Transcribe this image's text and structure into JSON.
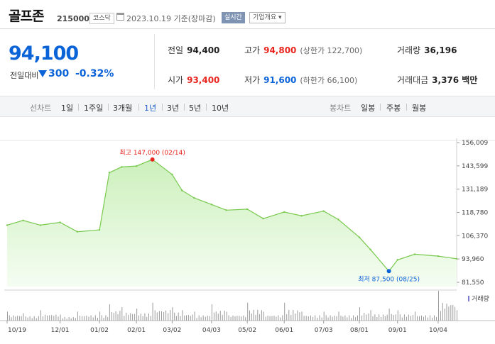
{
  "header": {
    "stock_name": "골프존",
    "stock_code": "215000",
    "market_badge": "코스닥",
    "date": "2023.10.19 기준(장마감)",
    "realtime_button": "실시간",
    "company_info_button": "기업개요 ▾"
  },
  "quote": {
    "price": "94,100",
    "change_label": "전일대비",
    "change": "300",
    "change_pct": "-0.32%",
    "direction": "down",
    "prev_close_label": "전일",
    "prev_close": "94,400",
    "high_label": "고가",
    "high": "94,800",
    "upper_limit": "(상한가 122,700)",
    "volume_label": "거래량",
    "volume": "36,196",
    "open_label": "시가",
    "open": "93,400",
    "low_label": "저가",
    "low": "91,600",
    "lower_limit": "(하한가 66,100)",
    "trade_value_label": "거래대금",
    "trade_value": "3,376 백만"
  },
  "periods": {
    "line_label": "선차트",
    "line_items": [
      "1일",
      "1주일",
      "3개월",
      "1년",
      "3년",
      "5년",
      "10년"
    ],
    "selected": "1년",
    "candle_label": "봉차트",
    "candle_items": [
      "일봉",
      "주봉",
      "월봉"
    ]
  },
  "colors": {
    "up": "#e8251f",
    "down": "#0b63d8",
    "line": "#79c94e",
    "area_top": "#ccf0bc",
    "area_bottom": "#f5fdf2",
    "volume_bar": "#9a9a9a"
  },
  "chart_data": {
    "type": "area",
    "y_ticks": [
      "156,009",
      "143,599",
      "131,189",
      "118,780",
      "106,370",
      "93,960",
      "81,550"
    ],
    "ylim": [
      81550,
      156009
    ],
    "x_tick_labels": [
      "10/19",
      "12/01",
      "01/02",
      "02/01",
      "03/02",
      "04/03",
      "05/02",
      "06/01",
      "07/03",
      "08/01",
      "09/01",
      "10/04"
    ],
    "high_annotation": "최고 147,000 (02/14)",
    "low_annotation": "최저 87,500 (08/25)",
    "volume_legend": "거래량",
    "dates": [
      "2022-10-19",
      "2022-11-01",
      "2022-11-15",
      "2022-12-01",
      "2022-12-15",
      "2023-01-02",
      "2023-01-10",
      "2023-01-20",
      "2023-02-01",
      "2023-02-14",
      "2023-03-02",
      "2023-03-10",
      "2023-03-20",
      "2023-04-03",
      "2023-04-15",
      "2023-05-02",
      "2023-05-15",
      "2023-06-01",
      "2023-06-15",
      "2023-07-03",
      "2023-07-15",
      "2023-08-01",
      "2023-08-10",
      "2023-08-25",
      "2023-09-01",
      "2023-09-15",
      "2023-10-04",
      "2023-10-19"
    ],
    "close": [
      112000,
      114500,
      112000,
      113500,
      108500,
      109500,
      140000,
      143000,
      143500,
      147000,
      139000,
      130500,
      126500,
      123000,
      120000,
      120500,
      115500,
      119000,
      117000,
      119500,
      115000,
      105500,
      99000,
      87500,
      93500,
      96500,
      95500,
      94100
    ],
    "volume_relative": [
      0.3,
      0.25,
      0.35,
      0.2,
      0.3,
      0.3,
      0.55,
      0.45,
      0.4,
      0.6,
      0.45,
      0.35,
      0.3,
      0.55,
      0.3,
      0.6,
      0.3,
      0.6,
      0.3,
      0.3,
      0.3,
      0.45,
      0.35,
      0.4,
      0.35,
      0.3,
      1.0,
      0.35
    ]
  }
}
